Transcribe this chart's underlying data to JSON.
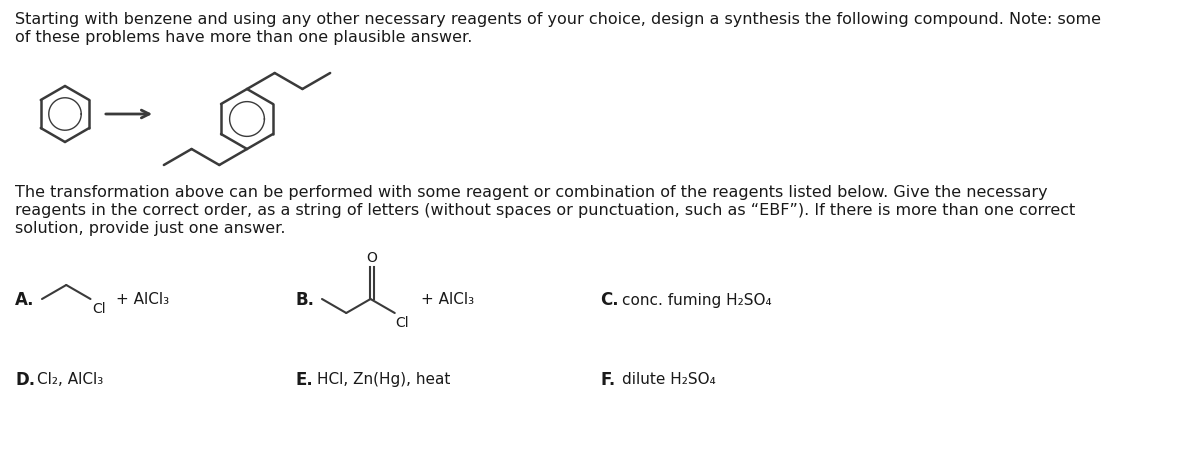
{
  "bg_color": "#ffffff",
  "text_color": "#1a1a1a",
  "title_line1": "Starting with benzene and using any other necessary reagents of your choice, design a synthesis the following compound. Note: some",
  "title_line2": "of these problems have more than one plausible answer.",
  "body_line1": "The transformation above can be performed with some reagent or combination of the reagents listed below. Give the necessary",
  "body_line2": "reagents in the correct order, as a string of letters (without spaces or punctuation, such as “EBF”). If there is more than one correct",
  "body_line3": "solution, provide just one answer.",
  "reagent_A_label": "A.",
  "reagent_A_text": "+ AlCl₃",
  "reagent_B_label": "B.",
  "reagent_B_text": "+ AlCl₃",
  "reagent_C_label": "C.",
  "reagent_C_text": "conc. fuming H₂SO₄",
  "reagent_D_label": "D.",
  "reagent_D_text": "Cl₂, AlCl₃",
  "reagent_E_label": "E.",
  "reagent_E_text": "HCl, Zn(Hg), heat",
  "reagent_F_label": "F.",
  "reagent_F_text": "dilute H₂SO₄",
  "font_size_title": 11.5,
  "font_size_body": 11.5,
  "font_size_reagent_label": 12,
  "font_size_reagent_text": 11,
  "font_size_mol": 10
}
